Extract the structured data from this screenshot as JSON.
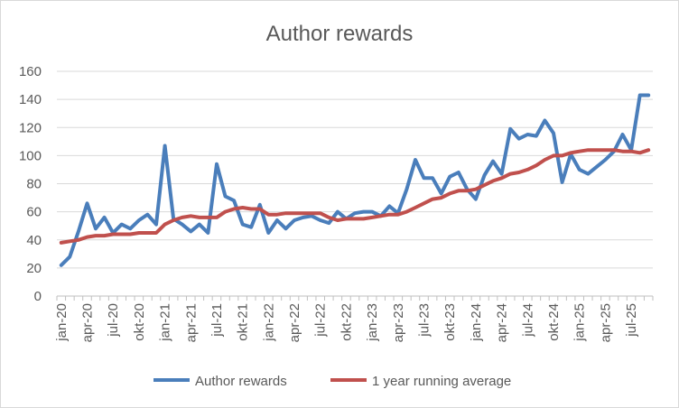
{
  "chart_data": {
    "type": "line",
    "title": "Author rewards",
    "xlabel": "",
    "ylabel": "",
    "ylim": [
      0,
      160
    ],
    "yticks": [
      0,
      20,
      40,
      60,
      80,
      100,
      120,
      140,
      160
    ],
    "grid": true,
    "legend_position": "bottom",
    "x": [
      "jan-20",
      "feb-20",
      "mar-20",
      "apr-20",
      "mai-20",
      "jun-20",
      "jul-20",
      "aug-20",
      "sep-20",
      "okt-20",
      "nov-20",
      "des-20",
      "jan-21",
      "feb-21",
      "mar-21",
      "apr-21",
      "mai-21",
      "jun-21",
      "jul-21",
      "aug-21",
      "sep-21",
      "okt-21",
      "nov-21",
      "des-21",
      "jan-22",
      "feb-22",
      "mar-22",
      "apr-22",
      "mai-22",
      "jun-22",
      "jul-22",
      "aug-22",
      "sep-22",
      "okt-22",
      "nov-22",
      "des-22",
      "jan-23",
      "feb-23",
      "mar-23",
      "apr-23",
      "mai-23",
      "jun-23",
      "jul-23",
      "aug-23",
      "sep-23",
      "okt-23",
      "nov-23",
      "des-23",
      "jan-24",
      "feb-24",
      "mar-24",
      "apr-24",
      "mai-24",
      "jun-24",
      "jul-24",
      "aug-24",
      "sep-24",
      "okt-24",
      "nov-24",
      "des-24",
      "jan-25",
      "feb-25",
      "mar-25",
      "apr-25",
      "mai-25",
      "jun-25",
      "jul-25",
      "aug-25",
      "sep-25"
    ],
    "x_tick_labels": [
      "jan-20",
      "apr-20",
      "jul-20",
      "okt-20",
      "jan-21",
      "apr-21",
      "jul-21",
      "okt-21",
      "jan-22",
      "apr-22",
      "jul-22",
      "okt-22",
      "jan-23",
      "apr-23",
      "jul-23",
      "okt-23",
      "jan-24",
      "apr-24",
      "jul-24",
      "okt-24",
      "jan-25",
      "apr-25",
      "jul-25"
    ],
    "series": [
      {
        "name": "Author rewards",
        "color": "#4a7ebb",
        "values": [
          22,
          28,
          46,
          66,
          48,
          56,
          45,
          51,
          48,
          54,
          58,
          51,
          107,
          55,
          51,
          46,
          51,
          45,
          94,
          71,
          68,
          51,
          49,
          65,
          45,
          54,
          48,
          54,
          56,
          57,
          54,
          52,
          60,
          55,
          59,
          60,
          60,
          57,
          64,
          59,
          76,
          97,
          84,
          84,
          73,
          85,
          88,
          76,
          69,
          86,
          96,
          87,
          119,
          112,
          115,
          114,
          125,
          116,
          81,
          101,
          90,
          87,
          92,
          97,
          103,
          115,
          104,
          143,
          143
        ]
      },
      {
        "name": "1 year running average",
        "color": "#c0504d",
        "values": [
          38,
          39,
          40,
          42,
          43,
          43,
          44,
          44,
          44,
          45,
          45,
          45,
          51,
          54,
          56,
          57,
          56,
          56,
          56,
          60,
          62,
          63,
          62,
          62,
          58,
          58,
          59,
          59,
          59,
          59,
          59,
          56,
          54,
          55,
          55,
          55,
          56,
          57,
          58,
          58,
          60,
          63,
          66,
          69,
          70,
          73,
          75,
          75,
          76,
          79,
          82,
          84,
          87,
          88,
          90,
          93,
          97,
          100,
          100,
          102,
          103,
          104,
          104,
          104,
          104,
          103,
          103,
          102,
          104
        ]
      }
    ]
  }
}
